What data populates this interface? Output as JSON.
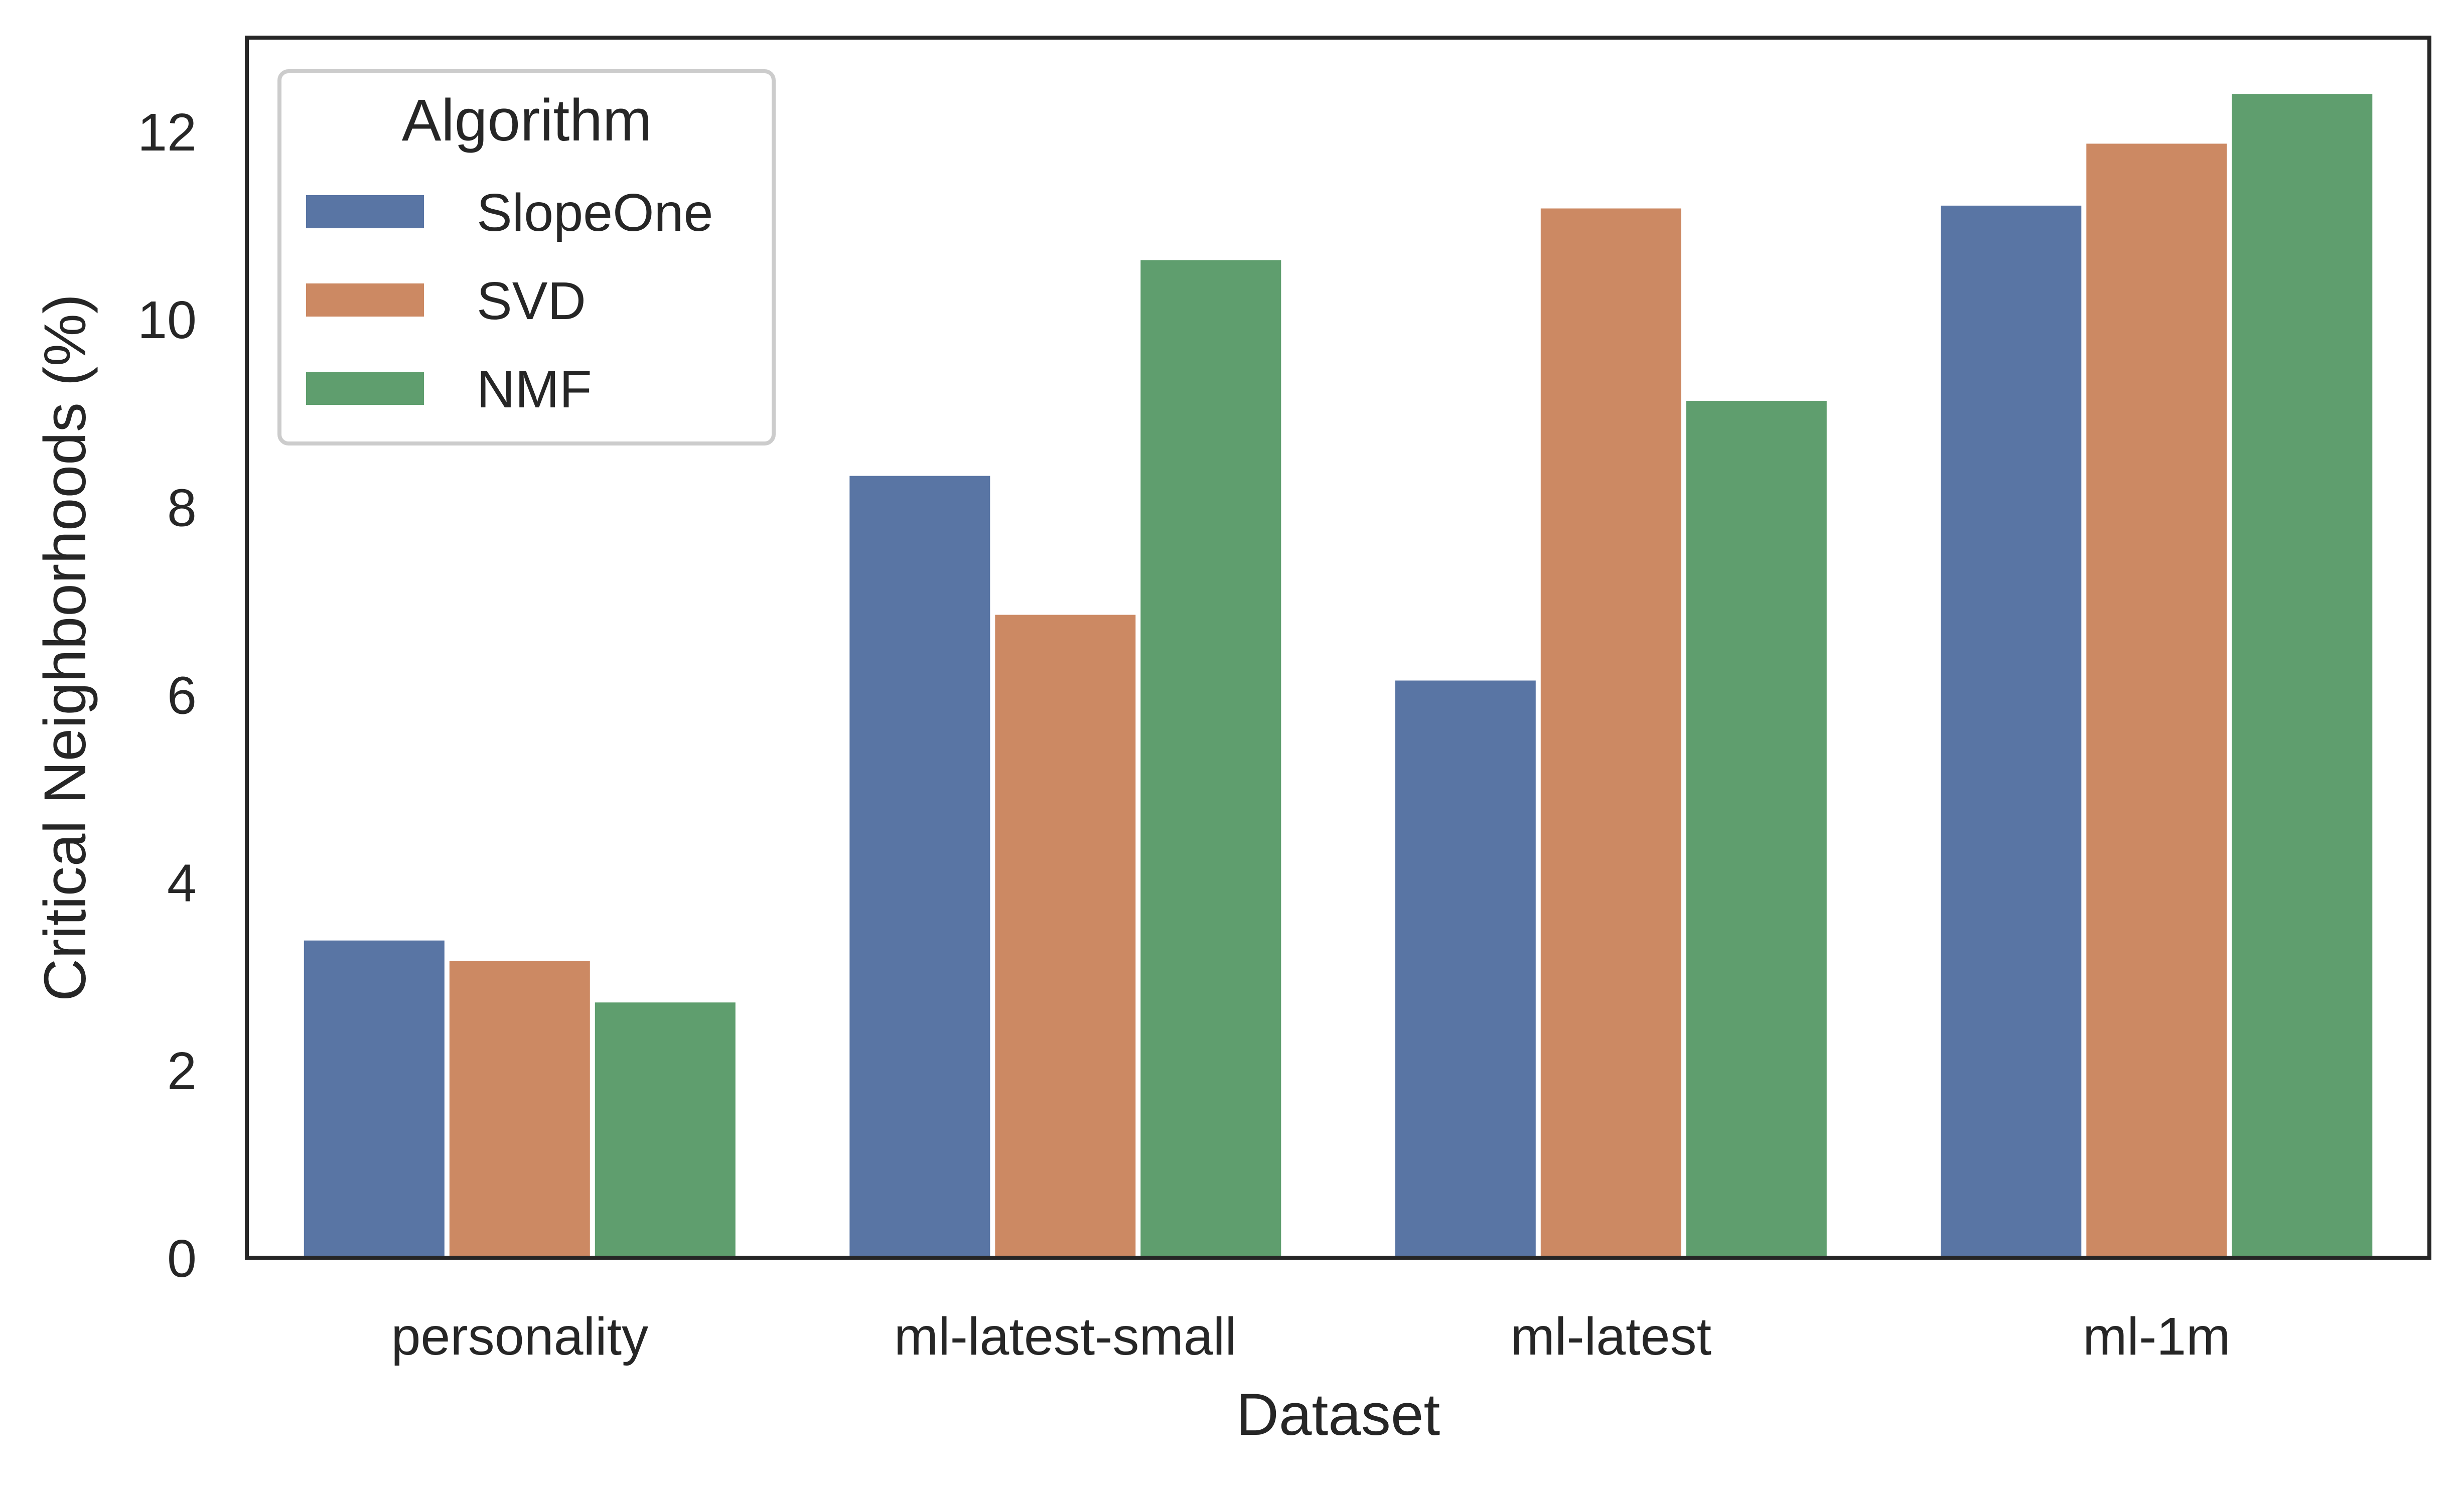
{
  "chart_data": {
    "type": "bar",
    "title": "",
    "xlabel": "Dataset",
    "ylabel": "Critical Neighborhoods (%)",
    "categories": [
      "personality",
      "ml-latest-small",
      "ml-latest",
      "ml-1m"
    ],
    "ylim": [
      0,
      13
    ],
    "yticks": [
      0,
      2,
      4,
      6,
      8,
      10,
      12
    ],
    "grid": false,
    "legend": {
      "title": "Algorithm",
      "placement": "top-left"
    },
    "series": [
      {
        "name": "SlopeOne",
        "color": "#5975a4",
        "values": [
          3.38,
          8.33,
          6.15,
          11.21
        ]
      },
      {
        "name": "SVD",
        "color": "#cc8963",
        "values": [
          3.16,
          6.85,
          11.18,
          11.87
        ]
      },
      {
        "name": "NMF",
        "color": "#5f9e6e",
        "values": [
          2.72,
          10.63,
          9.13,
          12.4
        ]
      }
    ]
  }
}
